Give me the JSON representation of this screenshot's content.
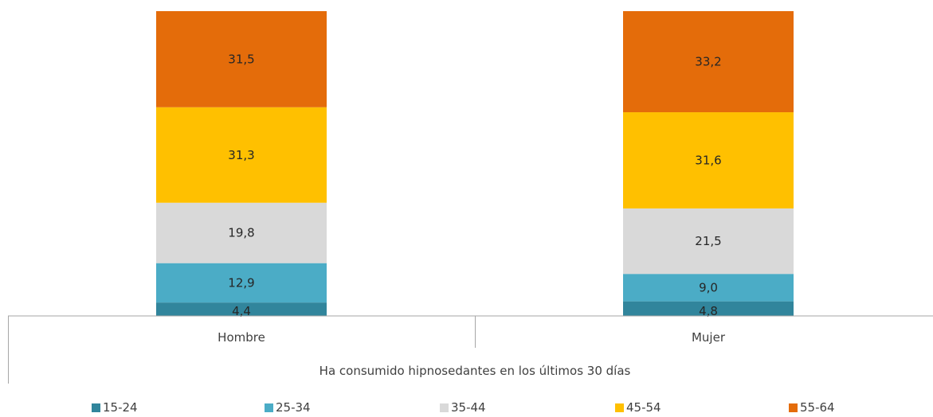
{
  "chart_data": {
    "type": "bar",
    "stacked": true,
    "categories": [
      "Hombre",
      "Mujer"
    ],
    "group_label": "Ha consumido hipnosedantes en los últimos 30 días",
    "series": [
      {
        "name": "15-24",
        "values": [
          4.4,
          4.8
        ],
        "labels": [
          "4,4",
          "4,8"
        ],
        "color": "#31859c"
      },
      {
        "name": "25-34",
        "values": [
          12.9,
          9.0
        ],
        "labels": [
          "12,9",
          "9,0"
        ],
        "color": "#4bacc6"
      },
      {
        "name": "35-44",
        "values": [
          19.8,
          21.5
        ],
        "labels": [
          "19,8",
          "21,5"
        ],
        "color": "#d9d9d9"
      },
      {
        "name": "45-54",
        "values": [
          31.3,
          31.6
        ],
        "labels": [
          "31,3",
          "31,6"
        ],
        "color": "#ffc000"
      },
      {
        "name": "55-64",
        "values": [
          31.5,
          33.2
        ],
        "labels": [
          "31,5",
          "33,2"
        ],
        "color": "#e46c0a"
      }
    ],
    "ylim": [
      0,
      100
    ],
    "legend_position": "bottom",
    "grid": false
  }
}
